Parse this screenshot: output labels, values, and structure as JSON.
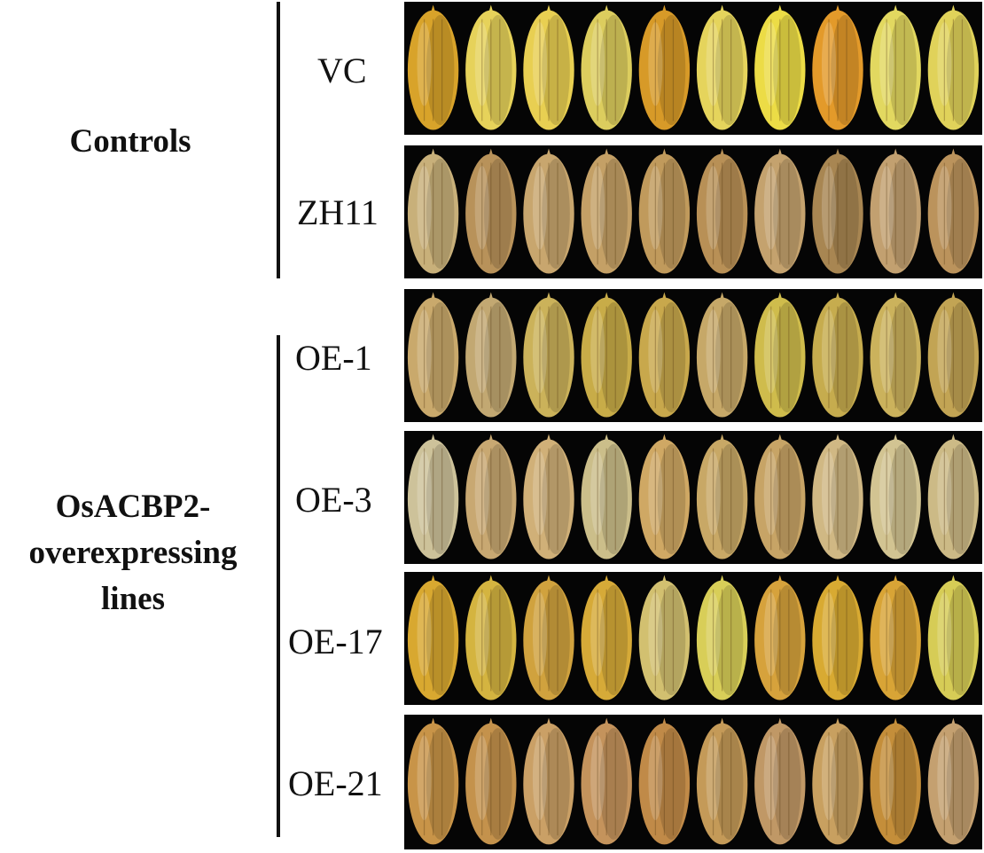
{
  "groups": [
    {
      "label": "Controls"
    },
    {
      "label_lines": [
        "OsACBP2-",
        "overexpressing",
        "lines"
      ]
    }
  ],
  "rows": [
    {
      "label": "VC",
      "grain_colors": [
        "#d8a32a",
        "#e6d25a",
        "#e8cf52",
        "#dccd5e",
        "#d79a28",
        "#e5d45c",
        "#ecdc46",
        "#e39a2a",
        "#e2d860",
        "#e0d25a"
      ]
    },
    {
      "label": "ZH11",
      "grain_colors": [
        "#c8b07a",
        "#b8925a",
        "#c8a66e",
        "#c4a066",
        "#c09a5c",
        "#b89056",
        "#c4a26e",
        "#a88652",
        "#c2a070",
        "#bb935c"
      ]
    },
    {
      "label": "OE-1",
      "grain_colors": [
        "#c9a96c",
        "#c2a872",
        "#cbb25a",
        "#c8ac48",
        "#c8a84c",
        "#c6a868",
        "#cfbc4c",
        "#c6ac4e",
        "#cbb25c",
        "#c2a454"
      ]
    },
    {
      "label": "OE-3",
      "grain_colors": [
        "#cdc29a",
        "#c8a872",
        "#d0b078",
        "#cbbe8a",
        "#cfa864",
        "#c8a866",
        "#c7a466",
        "#d0b884",
        "#d2c492",
        "#ccba86"
      ]
    },
    {
      "label": "OE-17",
      "grain_colors": [
        "#d8a830",
        "#d4b440",
        "#d0a23e",
        "#d6aa38",
        "#d2c070",
        "#d8ce58",
        "#d6a23c",
        "#d8aa32",
        "#d8a436",
        "#d6cc56"
      ]
    },
    {
      "label": "OE-21",
      "grain_colors": [
        "#c89448",
        "#c4924c",
        "#caa066",
        "#c4935c",
        "#c08a48",
        "#c49a58",
        "#c09866",
        "#c8a060",
        "#c48e3a",
        "#c4a070"
      ]
    }
  ]
}
